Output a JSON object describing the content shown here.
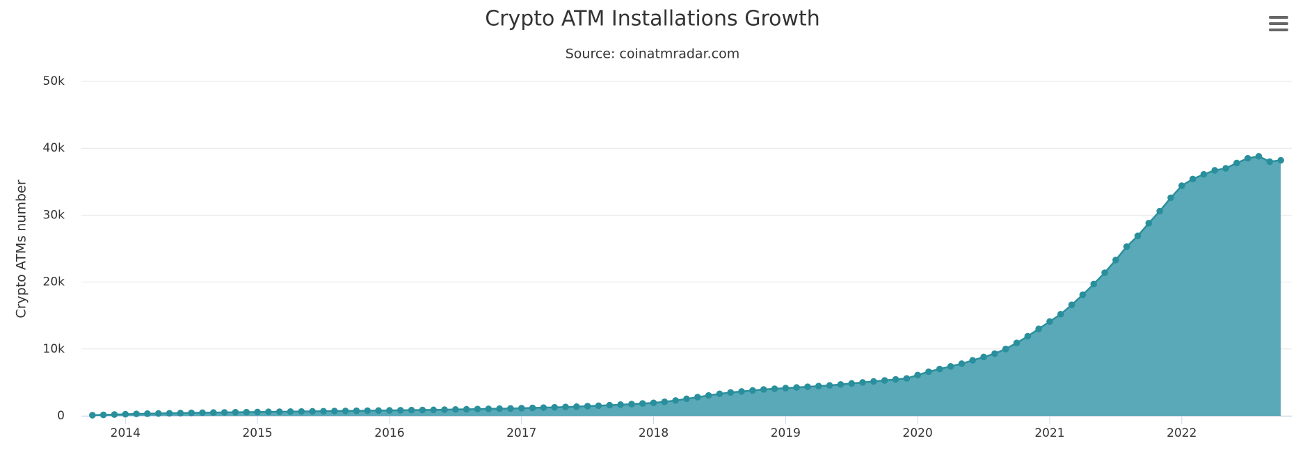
{
  "chart_data": {
    "type": "area",
    "title": "Crypto ATM Installations Growth",
    "subtitle": "Source: coinatmradar.com",
    "y_label": "Crypto ATMs number",
    "x": [
      "2013-10",
      "2013-11",
      "2013-12",
      "2014-01",
      "2014-02",
      "2014-03",
      "2014-04",
      "2014-05",
      "2014-06",
      "2014-07",
      "2014-08",
      "2014-09",
      "2014-10",
      "2014-11",
      "2014-12",
      "2015-01",
      "2015-02",
      "2015-03",
      "2015-04",
      "2015-05",
      "2015-06",
      "2015-07",
      "2015-08",
      "2015-09",
      "2015-10",
      "2015-11",
      "2015-12",
      "2016-01",
      "2016-02",
      "2016-03",
      "2016-04",
      "2016-05",
      "2016-06",
      "2016-07",
      "2016-08",
      "2016-09",
      "2016-10",
      "2016-11",
      "2016-12",
      "2017-01",
      "2017-02",
      "2017-03",
      "2017-04",
      "2017-05",
      "2017-06",
      "2017-07",
      "2017-08",
      "2017-09",
      "2017-10",
      "2017-11",
      "2017-12",
      "2018-01",
      "2018-02",
      "2018-03",
      "2018-04",
      "2018-05",
      "2018-06",
      "2018-07",
      "2018-08",
      "2018-09",
      "2018-10",
      "2018-11",
      "2018-12",
      "2019-01",
      "2019-02",
      "2019-03",
      "2019-04",
      "2019-05",
      "2019-06",
      "2019-07",
      "2019-08",
      "2019-09",
      "2019-10",
      "2019-11",
      "2019-12",
      "2020-01",
      "2020-02",
      "2020-03",
      "2020-04",
      "2020-05",
      "2020-06",
      "2020-07",
      "2020-08",
      "2020-09",
      "2020-10",
      "2020-11",
      "2020-12",
      "2021-01",
      "2021-02",
      "2021-03",
      "2021-04",
      "2021-05",
      "2021-06",
      "2021-07",
      "2021-08",
      "2021-09",
      "2021-10",
      "2021-11",
      "2021-12",
      "2022-01",
      "2022-02",
      "2022-03",
      "2022-04",
      "2022-05",
      "2022-06",
      "2022-07",
      "2022-08",
      "2022-09",
      "2022-10"
    ],
    "series": [
      {
        "name": "Crypto ATMs number",
        "color": "#2a8f9c",
        "fill": "#5aa9b8",
        "values": [
          100,
          150,
          200,
          250,
          300,
          330,
          360,
          390,
          420,
          450,
          480,
          500,
          520,
          540,
          560,
          580,
          600,
          620,
          640,
          660,
          680,
          700,
          720,
          740,
          760,
          780,
          800,
          820,
          840,
          860,
          880,
          900,
          930,
          960,
          990,
          1020,
          1050,
          1080,
          1110,
          1150,
          1190,
          1230,
          1280,
          1330,
          1380,
          1450,
          1520,
          1600,
          1680,
          1760,
          1850,
          1950,
          2100,
          2300,
          2550,
          2800,
          3050,
          3300,
          3500,
          3650,
          3800,
          3950,
          4050,
          4150,
          4250,
          4350,
          4450,
          4550,
          4700,
          4850,
          5000,
          5150,
          5300,
          5450,
          5600,
          6100,
          6600,
          7000,
          7400,
          7800,
          8300,
          8800,
          9300,
          10000,
          10900,
          11900,
          13000,
          14100,
          15200,
          16600,
          18100,
          19700,
          21400,
          23300,
          25300,
          26900,
          28800,
          30600,
          32600,
          34400,
          35400,
          36100,
          36700,
          37000,
          37800,
          38500,
          38800,
          38000,
          38200
        ]
      }
    ],
    "xlim": [
      "2013-09",
      "2022-11"
    ],
    "xticks": [
      {
        "value": "2014-01",
        "label": "2014"
      },
      {
        "value": "2015-01",
        "label": "2015"
      },
      {
        "value": "2016-01",
        "label": "2016"
      },
      {
        "value": "2017-01",
        "label": "2017"
      },
      {
        "value": "2018-01",
        "label": "2018"
      },
      {
        "value": "2019-01",
        "label": "2019"
      },
      {
        "value": "2020-01",
        "label": "2020"
      },
      {
        "value": "2021-01",
        "label": "2021"
      },
      {
        "value": "2022-01",
        "label": "2022"
      }
    ],
    "ylim": [
      0,
      50000
    ],
    "yticks": [
      0,
      {
        "value": 10000,
        "label": "10k"
      },
      {
        "value": 20000,
        "label": "20k"
      },
      {
        "value": 30000,
        "label": "30k"
      },
      {
        "value": 40000,
        "label": "40k"
      },
      {
        "value": 50000,
        "label": "50k"
      }
    ],
    "grid": true
  }
}
